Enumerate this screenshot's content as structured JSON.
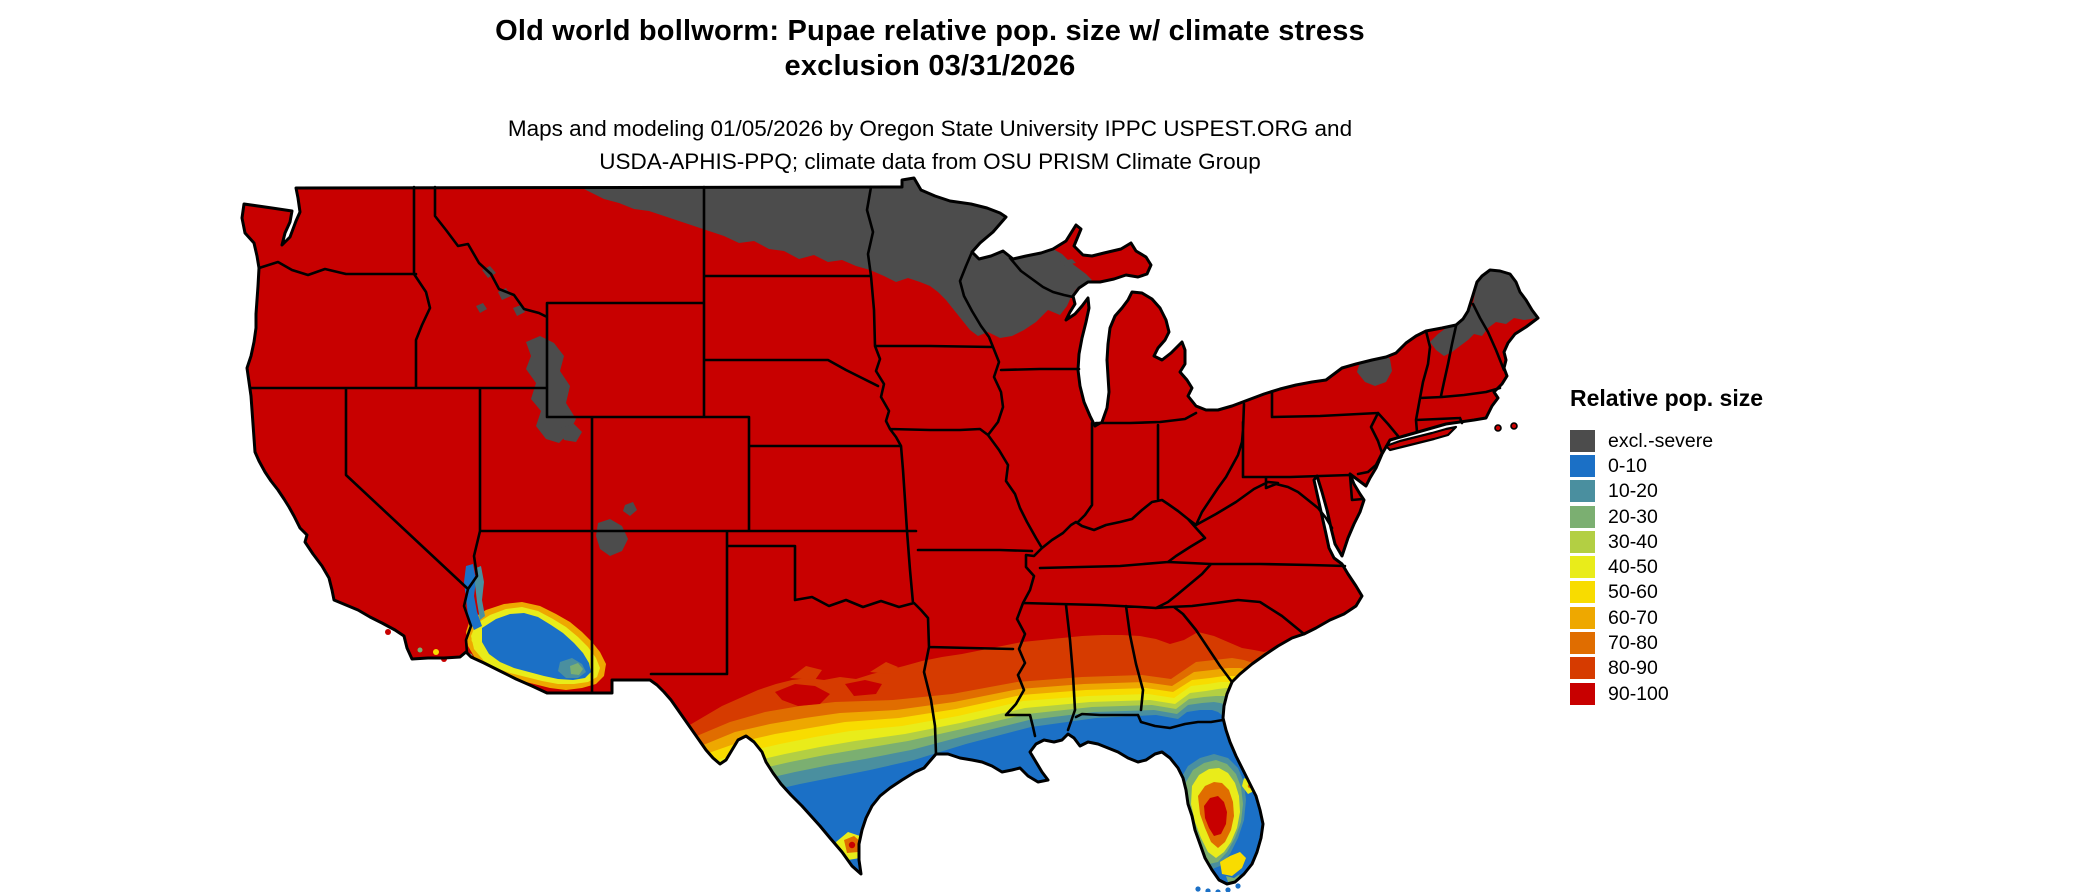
{
  "title": {
    "line1": "Old world bollworm: Pupae relative pop. size w/ climate stress",
    "line2": "exclusion 03/31/2026"
  },
  "subtitle": {
    "line1": "Maps and modeling 01/05/2026 by Oregon State University IPPC USPEST.ORG and",
    "line2": "USDA-APHIS-PPQ; climate data from OSU PRISM Climate Group"
  },
  "legend": {
    "title": "Relative pop. size",
    "items": [
      {
        "label": "excl.-severe",
        "color": "#4C4C4C"
      },
      {
        "label": "0-10",
        "color": "#1B70C6"
      },
      {
        "label": "10-20",
        "color": "#4A8F9F"
      },
      {
        "label": "20-30",
        "color": "#7BAF71"
      },
      {
        "label": "30-40",
        "color": "#B3CF43"
      },
      {
        "label": "40-50",
        "color": "#E9EC1A"
      },
      {
        "label": "50-60",
        "color": "#F8DC00"
      },
      {
        "label": "60-70",
        "color": "#EEA800"
      },
      {
        "label": "70-80",
        "color": "#E06D00"
      },
      {
        "label": "80-90",
        "color": "#D63B00"
      },
      {
        "label": "90-100",
        "color": "#C80000"
      }
    ]
  },
  "map": {
    "border_color": "#000000",
    "background_color": "#FFFFFF",
    "water_color": "#FFFFFF"
  }
}
